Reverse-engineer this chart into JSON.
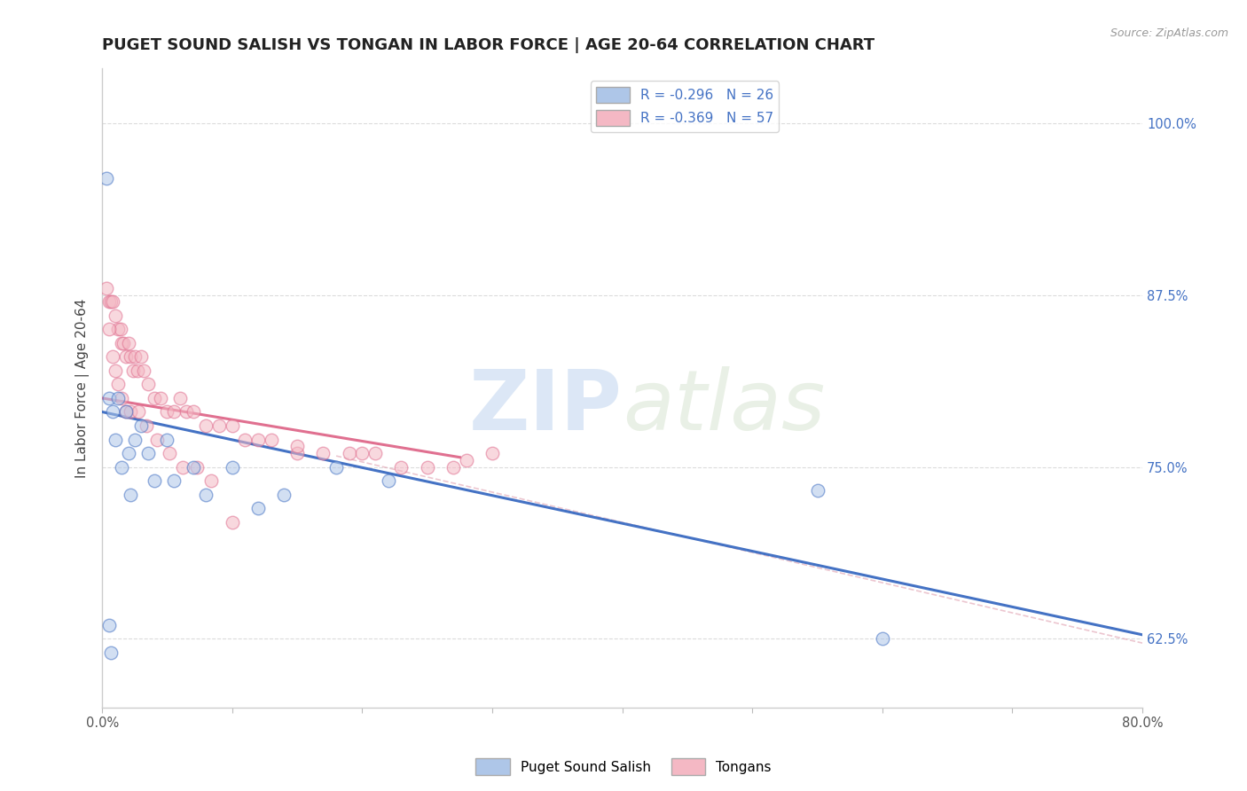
{
  "title": "PUGET SOUND SALISH VS TONGAN IN LABOR FORCE | AGE 20-64 CORRELATION CHART",
  "source_text": "Source: ZipAtlas.com",
  "ylabel": "In Labor Force | Age 20-64",
  "xlim": [
    0.0,
    0.8
  ],
  "ylim": [
    0.575,
    1.04
  ],
  "yticks": [
    0.625,
    0.75,
    0.875,
    1.0
  ],
  "ytick_labels": [
    "62.5%",
    "75.0%",
    "87.5%",
    "100.0%"
  ],
  "xticks": [
    0.0,
    0.1,
    0.2,
    0.3,
    0.4,
    0.5,
    0.6,
    0.7,
    0.8
  ],
  "xtick_labels": [
    "0.0%",
    "",
    "",
    "",
    "",
    "",
    "",
    "",
    "80.0%"
  ],
  "legend_entries": [
    {
      "label": "R = -0.296   N = 26",
      "color": "#aec6e8"
    },
    {
      "label": "R = -0.369   N = 57",
      "color": "#f4b8c4"
    }
  ],
  "legend_labels": [
    "Puget Sound Salish",
    "Tongans"
  ],
  "watermark_zip": "ZIP",
  "watermark_atlas": "atlas",
  "blue_line_x": [
    0.0,
    0.8
  ],
  "blue_line_y": [
    0.79,
    0.628
  ],
  "pink_line_x": [
    0.0,
    0.275
  ],
  "pink_line_y": [
    0.8,
    0.757
  ],
  "dashed_line_x": [
    0.18,
    0.8
  ],
  "dashed_line_y": [
    0.758,
    0.622
  ],
  "salish_points_x": [
    0.003,
    0.005,
    0.008,
    0.01,
    0.012,
    0.015,
    0.018,
    0.02,
    0.022,
    0.025,
    0.03,
    0.035,
    0.04,
    0.05,
    0.055,
    0.07,
    0.08,
    0.1,
    0.12,
    0.14,
    0.18,
    0.22,
    0.55,
    0.6,
    0.005,
    0.007
  ],
  "salish_points_y": [
    0.96,
    0.8,
    0.79,
    0.77,
    0.8,
    0.75,
    0.79,
    0.76,
    0.73,
    0.77,
    0.78,
    0.76,
    0.74,
    0.77,
    0.74,
    0.75,
    0.73,
    0.75,
    0.72,
    0.73,
    0.75,
    0.74,
    0.733,
    0.625,
    0.635,
    0.615
  ],
  "tongan_points_x": [
    0.003,
    0.005,
    0.007,
    0.008,
    0.01,
    0.012,
    0.014,
    0.015,
    0.016,
    0.018,
    0.02,
    0.022,
    0.024,
    0.025,
    0.027,
    0.03,
    0.032,
    0.035,
    0.04,
    0.045,
    0.05,
    0.055,
    0.06,
    0.065,
    0.07,
    0.08,
    0.09,
    0.1,
    0.11,
    0.12,
    0.13,
    0.15,
    0.17,
    0.19,
    0.21,
    0.23,
    0.25,
    0.27,
    0.3,
    0.005,
    0.008,
    0.01,
    0.012,
    0.015,
    0.018,
    0.022,
    0.028,
    0.034,
    0.042,
    0.052,
    0.062,
    0.073,
    0.084,
    0.1,
    0.15,
    0.2,
    0.28
  ],
  "tongan_points_y": [
    0.88,
    0.87,
    0.87,
    0.87,
    0.86,
    0.85,
    0.85,
    0.84,
    0.84,
    0.83,
    0.84,
    0.83,
    0.82,
    0.83,
    0.82,
    0.83,
    0.82,
    0.81,
    0.8,
    0.8,
    0.79,
    0.79,
    0.8,
    0.79,
    0.79,
    0.78,
    0.78,
    0.78,
    0.77,
    0.77,
    0.77,
    0.76,
    0.76,
    0.76,
    0.76,
    0.75,
    0.75,
    0.75,
    0.76,
    0.85,
    0.83,
    0.82,
    0.81,
    0.8,
    0.79,
    0.79,
    0.79,
    0.78,
    0.77,
    0.76,
    0.75,
    0.75,
    0.74,
    0.71,
    0.765,
    0.76,
    0.755
  ],
  "blue_color": "#4472c4",
  "pink_color": "#e07090",
  "salish_dot_color": "#aec6e8",
  "tongan_dot_color": "#f4b8c4",
  "dashed_color": "#e0a0b0",
  "grid_color": "#cccccc",
  "bg_color": "#ffffff",
  "title_fontsize": 13,
  "axis_label_fontsize": 11,
  "tick_fontsize": 10.5,
  "dot_size": 110,
  "dot_alpha": 0.55,
  "dot_linewidth": 1.0
}
